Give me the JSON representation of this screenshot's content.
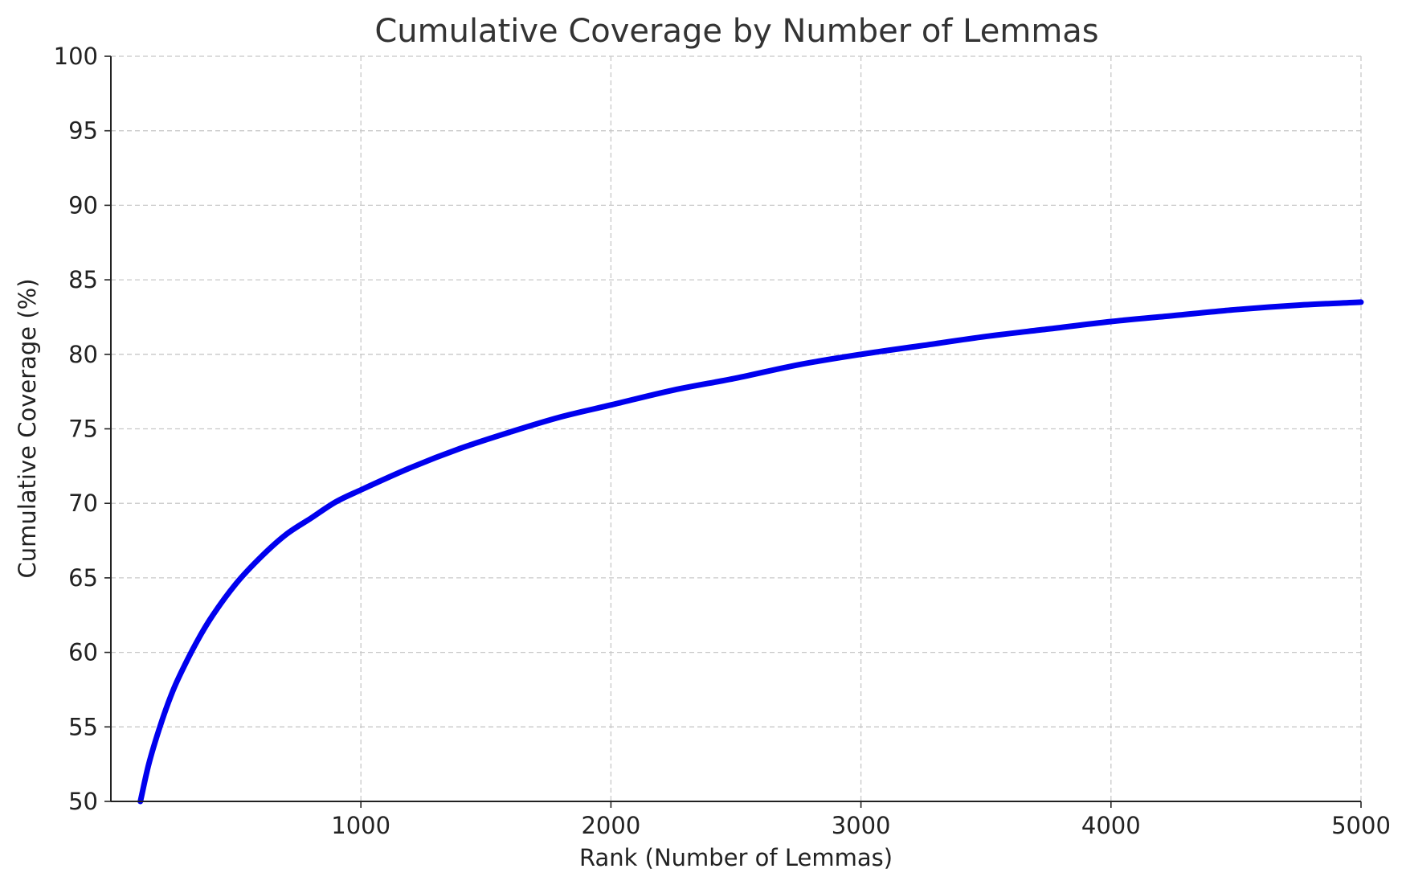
{
  "chart_data": {
    "type": "line",
    "title": "Cumulative Coverage by Number of Lemmas",
    "xlabel": "Rank (Number of Lemmas)",
    "ylabel": "Cumulative Coverage (%)",
    "xlim": [
      0,
      5000
    ],
    "ylim": [
      50,
      100
    ],
    "xticks": [
      "1000",
      "2000",
      "3000",
      "4000",
      "5000"
    ],
    "yticks": [
      "50",
      "55",
      "60",
      "65",
      "70",
      "75",
      "80",
      "85",
      "90",
      "95",
      "100"
    ],
    "grid": true,
    "series": [
      {
        "color": "#0000ee",
        "x": [
          118,
          150,
          200,
          250,
          300,
          350,
          400,
          500,
          600,
          700,
          800,
          900,
          1000,
          1200,
          1400,
          1600,
          1800,
          2000,
          2250,
          2500,
          2750,
          3000,
          3250,
          3500,
          3750,
          4000,
          4250,
          4500,
          4750,
          5000
        ],
        "y": [
          50.0,
          52.4,
          55.2,
          57.5,
          59.3,
          60.9,
          62.3,
          64.6,
          66.4,
          67.9,
          69.0,
          70.1,
          70.9,
          72.4,
          73.7,
          74.8,
          75.8,
          76.6,
          77.6,
          78.4,
          79.3,
          80.0,
          80.6,
          81.2,
          81.7,
          82.2,
          82.6,
          83.0,
          83.3,
          83.5
        ]
      }
    ]
  }
}
